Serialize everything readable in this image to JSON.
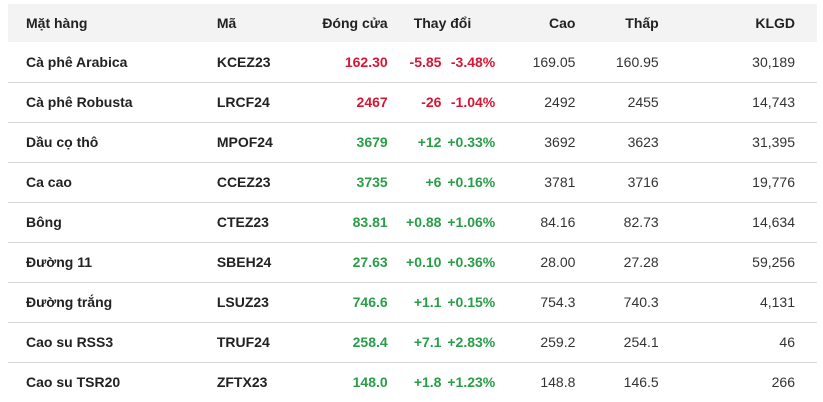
{
  "table": {
    "headers": {
      "name": "Mặt hàng",
      "code": "Mã",
      "close": "Đóng cửa",
      "change": "Thay đổi",
      "high": "Cao",
      "low": "Thấp",
      "volume": "KLGD"
    },
    "rows": [
      {
        "name": "Cà phê Arabica",
        "code": "KCEZ23",
        "close": "162.30",
        "change": "-5.85",
        "pct": "-3.48%",
        "high": "169.05",
        "low": "160.95",
        "volume": "30,189",
        "dir": "down"
      },
      {
        "name": "Cà phê Robusta",
        "code": "LRCF24",
        "close": "2467",
        "change": "-26",
        "pct": "-1.04%",
        "high": "2492",
        "low": "2455",
        "volume": "14,743",
        "dir": "down"
      },
      {
        "name": "Dầu cọ thô",
        "code": "MPOF24",
        "close": "3679",
        "change": "+12",
        "pct": "+0.33%",
        "high": "3692",
        "low": "3623",
        "volume": "31,395",
        "dir": "up"
      },
      {
        "name": "Ca cao",
        "code": "CCEZ23",
        "close": "3735",
        "change": "+6",
        "pct": "+0.16%",
        "high": "3781",
        "low": "3716",
        "volume": "19,776",
        "dir": "up"
      },
      {
        "name": "Bông",
        "code": "CTEZ23",
        "close": "83.81",
        "change": "+0.88",
        "pct": "+1.06%",
        "high": "84.16",
        "low": "82.73",
        "volume": "14,634",
        "dir": "up"
      },
      {
        "name": "Đường 11",
        "code": "SBEH24",
        "close": "27.63",
        "change": "+0.10",
        "pct": "+0.36%",
        "high": "28.00",
        "low": "27.28",
        "volume": "59,256",
        "dir": "up"
      },
      {
        "name": "Đường trắng",
        "code": "LSUZ23",
        "close": "746.6",
        "change": "+1.1",
        "pct": "+0.15%",
        "high": "754.3",
        "low": "740.3",
        "volume": "4,131",
        "dir": "up"
      },
      {
        "name": "Cao su RSS3",
        "code": "TRUF24",
        "close": "258.4",
        "change": "+7.1",
        "pct": "+2.83%",
        "high": "259.2",
        "low": "254.1",
        "volume": "46",
        "dir": "up"
      },
      {
        "name": "Cao su TSR20",
        "code": "ZFTX23",
        "close": "148.0",
        "change": "+1.8",
        "pct": "+1.23%",
        "high": "148.8",
        "low": "146.5",
        "volume": "266",
        "dir": "up"
      }
    ],
    "colors": {
      "down": "#d71635",
      "up": "#2a9d48",
      "header_bg": "#f3f3f3"
    }
  }
}
